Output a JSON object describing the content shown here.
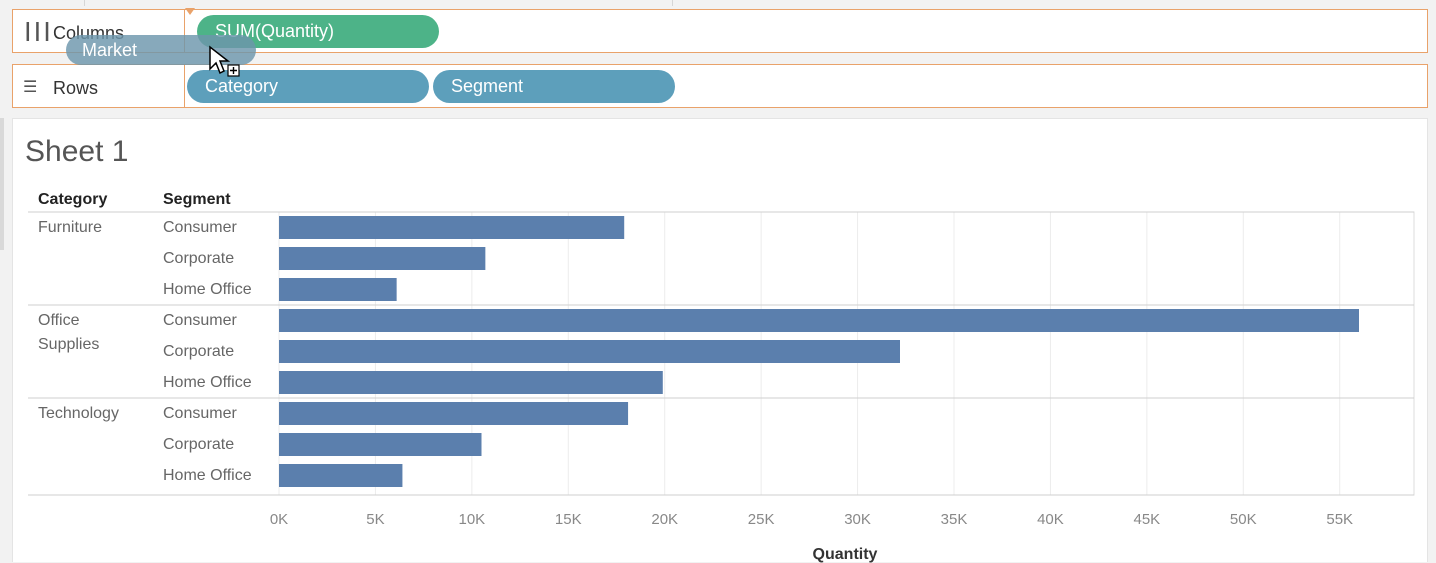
{
  "shelves": {
    "columns": {
      "label": "Columns",
      "icon": "columns-icon",
      "pills": [
        {
          "label": "SUM(Quantity)",
          "color": "#4db388"
        }
      ]
    },
    "rows": {
      "label": "Rows",
      "icon": "rows-icon",
      "pills": [
        {
          "label": "Category",
          "color": "#5d9fbb"
        },
        {
          "label": "Segment",
          "color": "#5d9fbb"
        }
      ]
    },
    "dragging_pill": {
      "label": "Market"
    }
  },
  "sheet": {
    "title": "Sheet 1",
    "headers": {
      "category": "Category",
      "segment": "Segment"
    }
  },
  "colors": {
    "bar": "#5b7fad",
    "shelf_border": "#e9a26a"
  },
  "chart_data": {
    "type": "bar",
    "orientation": "horizontal",
    "xlabel": "Quantity",
    "xlim": [
      0,
      57500
    ],
    "xticks": [
      0,
      5000,
      10000,
      15000,
      20000,
      25000,
      30000,
      35000,
      40000,
      45000,
      50000,
      55000
    ],
    "xtick_labels": [
      "0K",
      "5K",
      "10K",
      "15K",
      "20K",
      "25K",
      "30K",
      "35K",
      "40K",
      "45K",
      "50K",
      "55K"
    ],
    "grid": true,
    "groups": [
      {
        "category_lines": [
          "Furniture"
        ],
        "rows": [
          {
            "segment": "Consumer",
            "value": 17900
          },
          {
            "segment": "Corporate",
            "value": 10700
          },
          {
            "segment": "Home Office",
            "value": 6100
          }
        ]
      },
      {
        "category_lines": [
          "Office",
          "Supplies"
        ],
        "rows": [
          {
            "segment": "Consumer",
            "value": 56000
          },
          {
            "segment": "Corporate",
            "value": 32200
          },
          {
            "segment": "Home Office",
            "value": 19900
          }
        ]
      },
      {
        "category_lines": [
          "Technology"
        ],
        "rows": [
          {
            "segment": "Consumer",
            "value": 18100
          },
          {
            "segment": "Corporate",
            "value": 10500
          },
          {
            "segment": "Home Office",
            "value": 6400
          }
        ]
      }
    ]
  }
}
